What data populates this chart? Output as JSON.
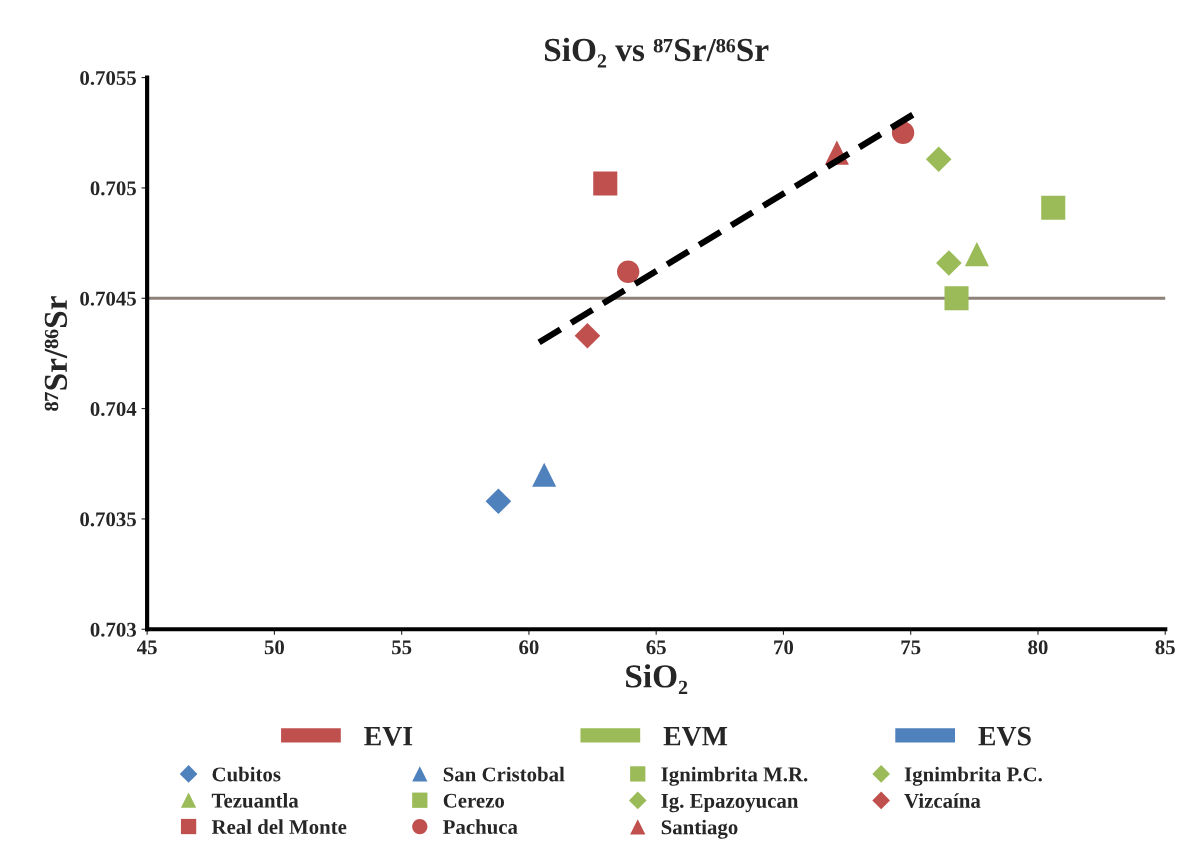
{
  "chart_data": {
    "type": "scatter",
    "title": "SiO₂ vs ⁸⁷Sr/⁸⁶Sr",
    "xlabel": "SiO₂",
    "ylabel": "⁸⁷Sr/⁸⁶Sr",
    "xlim": [
      45,
      85
    ],
    "xticks": [
      45,
      50,
      55,
      60,
      65,
      70,
      75,
      80,
      85
    ],
    "ylim": [
      0.703,
      0.7055
    ],
    "yticks": [
      0.703,
      0.7035,
      0.704,
      0.7045,
      0.705,
      0.7055
    ],
    "grid": false,
    "legend": "bottom",
    "ref_lines": [
      {
        "axis": "y",
        "value": 0.7045,
        "color": "#8c8279",
        "line_style": "solid"
      }
    ],
    "series": [
      {
        "name": "EVI",
        "type": "bar",
        "color": "#c0504d"
      },
      {
        "name": "EVM",
        "type": "bar",
        "color": "#9bbb59"
      },
      {
        "name": "EVS",
        "type": "bar",
        "color": "#4f81bd"
      },
      {
        "name": "Cubitos",
        "color": "#4f81bd",
        "marker": "diamond",
        "x": [
          58.8
        ],
        "values": [
          0.70358
        ]
      },
      {
        "name": "San Cristobal",
        "color": "#4f81bd",
        "marker": "triangle",
        "x": [
          60.6
        ],
        "values": [
          0.7037
        ]
      },
      {
        "name": "Ignimbrita M.R.",
        "color": "#9bbb59",
        "marker": "square",
        "x": [
          76.8
        ],
        "values": [
          0.7045
        ]
      },
      {
        "name": "Ignimbrita P.C.",
        "color": "#9bbb59",
        "marker": "diamond",
        "x": [
          76.1
        ],
        "values": [
          0.70513
        ]
      },
      {
        "name": "Tezuantla",
        "color": "#9bbb59",
        "marker": "triangle",
        "x": [
          77.6
        ],
        "values": [
          0.7047
        ]
      },
      {
        "name": "Cerezo",
        "color": "#9bbb59",
        "marker": "square",
        "x": [
          80.6
        ],
        "values": [
          0.70491
        ]
      },
      {
        "name": "Ig. Epazoyucan",
        "color": "#9bbb59",
        "marker": "diamond",
        "x": [
          76.5
        ],
        "values": [
          0.70466
        ]
      },
      {
        "name": "Vizcaína",
        "color": "#c0504d",
        "marker": "diamond",
        "x": [
          62.3
        ],
        "values": [
          0.70433
        ]
      },
      {
        "name": "Real del Monte",
        "color": "#c0504d",
        "marker": "square",
        "x": [
          63.0
        ],
        "values": [
          0.70502
        ]
      },
      {
        "name": "Pachuca",
        "color": "#c0504d",
        "marker": "circle",
        "x": [
          63.9,
          74.7
        ],
        "values": [
          0.70462,
          0.70525
        ]
      },
      {
        "name": "Santiago",
        "color": "#c0504d",
        "marker": "triangle",
        "x": [
          72.1
        ],
        "values": [
          0.70516
        ]
      },
      {
        "type": "line",
        "color": "#000000",
        "line_style": "dashed",
        "marker": "none",
        "x": [
          60.4,
          75.2
        ],
        "values": [
          0.7043,
          0.70534
        ]
      }
    ]
  }
}
